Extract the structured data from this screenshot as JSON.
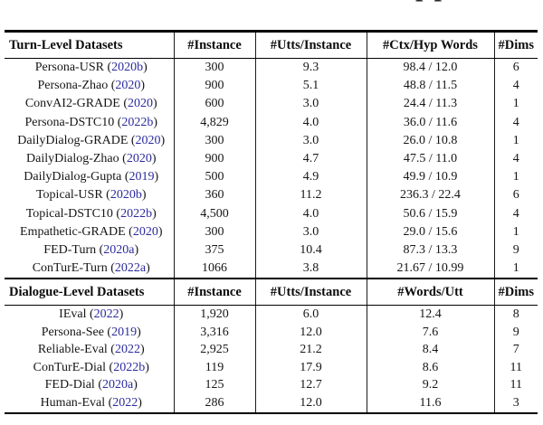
{
  "page": {
    "top_fragment": "pp"
  },
  "colors": {
    "citation_blue": "#2b2b9d",
    "text": "#161616",
    "rule": "#000000"
  },
  "turn_table": {
    "title": "Turn-Level Datasets",
    "columns": [
      "#Instance",
      "#Utts/Instance",
      "#Ctx/Hyp Words",
      "#Dims"
    ],
    "rows": [
      {
        "name": "Persona-USR",
        "year": "2020b",
        "instances": "300",
        "utts_per_instance": "9.3",
        "ctx_hyp_words": "98.4 / 12.0",
        "dims": "6"
      },
      {
        "name": "Persona-Zhao",
        "year": "2020",
        "instances": "900",
        "utts_per_instance": "5.1",
        "ctx_hyp_words": "48.8 / 11.5",
        "dims": "4"
      },
      {
        "name": "ConvAI2-GRADE",
        "year": "2020",
        "instances": "600",
        "utts_per_instance": "3.0",
        "ctx_hyp_words": "24.4 / 11.3",
        "dims": "1"
      },
      {
        "name": "Persona-DSTC10",
        "year": "2022b",
        "instances": "4,829",
        "utts_per_instance": "4.0",
        "ctx_hyp_words": "36.0 / 11.6",
        "dims": "4"
      },
      {
        "name": "DailyDialog-GRADE",
        "year": "2020",
        "instances": "300",
        "utts_per_instance": "3.0",
        "ctx_hyp_words": "26.0 / 10.8",
        "dims": "1"
      },
      {
        "name": "DailyDialog-Zhao",
        "year": "2020",
        "instances": "900",
        "utts_per_instance": "4.7",
        "ctx_hyp_words": "47.5 / 11.0",
        "dims": "4"
      },
      {
        "name": "DailyDialog-Gupta",
        "year": "2019",
        "instances": "500",
        "utts_per_instance": "4.9",
        "ctx_hyp_words": "49.9 / 10.9",
        "dims": "1"
      },
      {
        "name": "Topical-USR",
        "year": "2020b",
        "instances": "360",
        "utts_per_instance": "11.2",
        "ctx_hyp_words": "236.3 / 22.4",
        "dims": "6"
      },
      {
        "name": "Topical-DSTC10",
        "year": "2022b",
        "instances": "4,500",
        "utts_per_instance": "4.0",
        "ctx_hyp_words": "50.6 / 15.9",
        "dims": "4"
      },
      {
        "name": "Empathetic-GRADE",
        "year": "2020",
        "instances": "300",
        "utts_per_instance": "3.0",
        "ctx_hyp_words": "29.0 / 15.6",
        "dims": "1"
      },
      {
        "name": "FED-Turn",
        "year": "2020a",
        "instances": "375",
        "utts_per_instance": "10.4",
        "ctx_hyp_words": "87.3 / 13.3",
        "dims": "9"
      },
      {
        "name": "ConTurE-Turn",
        "year": "2022a",
        "instances": "1066",
        "utts_per_instance": "3.8",
        "ctx_hyp_words": "21.67 / 10.99",
        "dims": "1"
      }
    ]
  },
  "dialogue_table": {
    "title": "Dialogue-Level Datasets",
    "columns": [
      "#Instance",
      "#Utts/Instance",
      "#Words/Utt",
      "#Dims"
    ],
    "rows": [
      {
        "name": "IEval",
        "year": "2022",
        "instances": "1,920",
        "utts_per_instance": "6.0",
        "words_per_utt": "12.4",
        "dims": "8"
      },
      {
        "name": "Persona-See",
        "year": "2019",
        "instances": "3,316",
        "utts_per_instance": "12.0",
        "words_per_utt": "7.6",
        "dims": "9"
      },
      {
        "name": "Reliable-Eval",
        "year": "2022",
        "instances": "2,925",
        "utts_per_instance": "21.2",
        "words_per_utt": "8.4",
        "dims": "7"
      },
      {
        "name": "ConTurE-Dial",
        "year": "2022b",
        "instances": "119",
        "utts_per_instance": "17.9",
        "words_per_utt": "8.6",
        "dims": "11"
      },
      {
        "name": "FED-Dial",
        "year": "2020a",
        "instances": "125",
        "utts_per_instance": "12.7",
        "words_per_utt": "9.2",
        "dims": "11"
      },
      {
        "name": "Human-Eval",
        "year": "2022",
        "instances": "286",
        "utts_per_instance": "12.0",
        "words_per_utt": "11.6",
        "dims": "3"
      }
    ]
  }
}
